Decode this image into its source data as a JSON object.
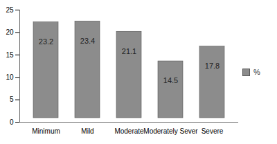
{
  "chart_data": {
    "type": "bar",
    "categories": [
      "Minimum",
      "Mild",
      "Moderate",
      "Moderately Sever",
      "Severe"
    ],
    "series": [
      {
        "name": "%",
        "color": "#8c8c8c",
        "values": [
          23.2,
          23.4,
          21.1,
          14.5,
          17.8
        ]
      }
    ],
    "ylim": [
      0,
      25
    ],
    "yticks": [
      0,
      5,
      10,
      15,
      20,
      25
    ],
    "grid": false,
    "legend": "right",
    "data_labels": true
  }
}
